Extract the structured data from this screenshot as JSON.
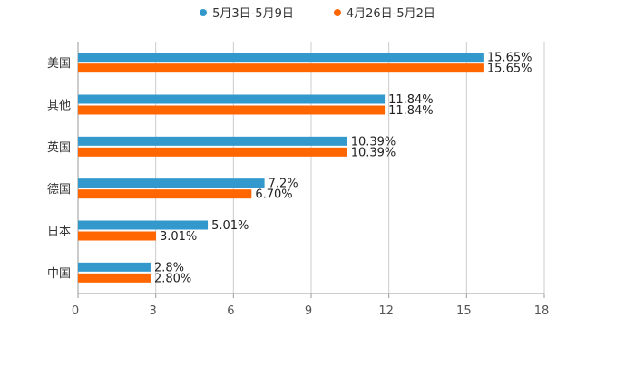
{
  "chart_data": {
    "type": "bar",
    "orientation": "horizontal",
    "title": "",
    "xlabel": "",
    "ylabel": "",
    "xlim": [
      0,
      18
    ],
    "x_ticks": [
      "0",
      "3",
      "6",
      "9",
      "12",
      "15",
      "18"
    ],
    "categories": [
      "美国",
      "其他",
      "英国",
      "德国",
      "日本",
      "中国"
    ],
    "series": [
      {
        "name": "5月3日-5月9日",
        "color": "#3399cc",
        "values": [
          15.65,
          11.84,
          10.39,
          7.2,
          5.01,
          2.8
        ],
        "labels": [
          "15.65%",
          "11.84%",
          "10.39%",
          "7.2%",
          "5.01%",
          "2.8%"
        ]
      },
      {
        "name": "4月26日-5月2日",
        "color": "#ff6600",
        "values": [
          15.65,
          11.84,
          10.39,
          6.7,
          3.01,
          2.8
        ],
        "labels": [
          "15.65%",
          "11.84%",
          "10.39%",
          "6.70%",
          "3.01%",
          "2.80%"
        ]
      }
    ],
    "grid": true,
    "legend": "top-center"
  }
}
